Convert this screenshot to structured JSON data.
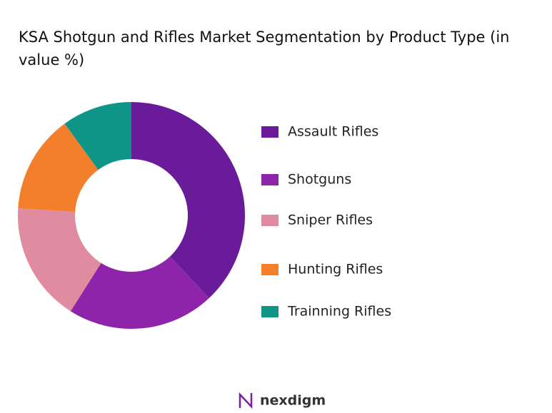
{
  "chart_data": {
    "type": "donut",
    "title": "KSA Shotgun and Rifles Market Segmentation by Product Type (in value %)",
    "categories": [
      "Assault Rifles",
      "Shotguns",
      "Sniper Rifles",
      "Hunting Rifles",
      "Trainning Rifles"
    ],
    "values": [
      38,
      21,
      17,
      14,
      10
    ],
    "colors": [
      "#6a1b9a",
      "#8e24aa",
      "#e08ba0",
      "#f47f2a",
      "#0f9587"
    ]
  },
  "logo": "nexdigm"
}
